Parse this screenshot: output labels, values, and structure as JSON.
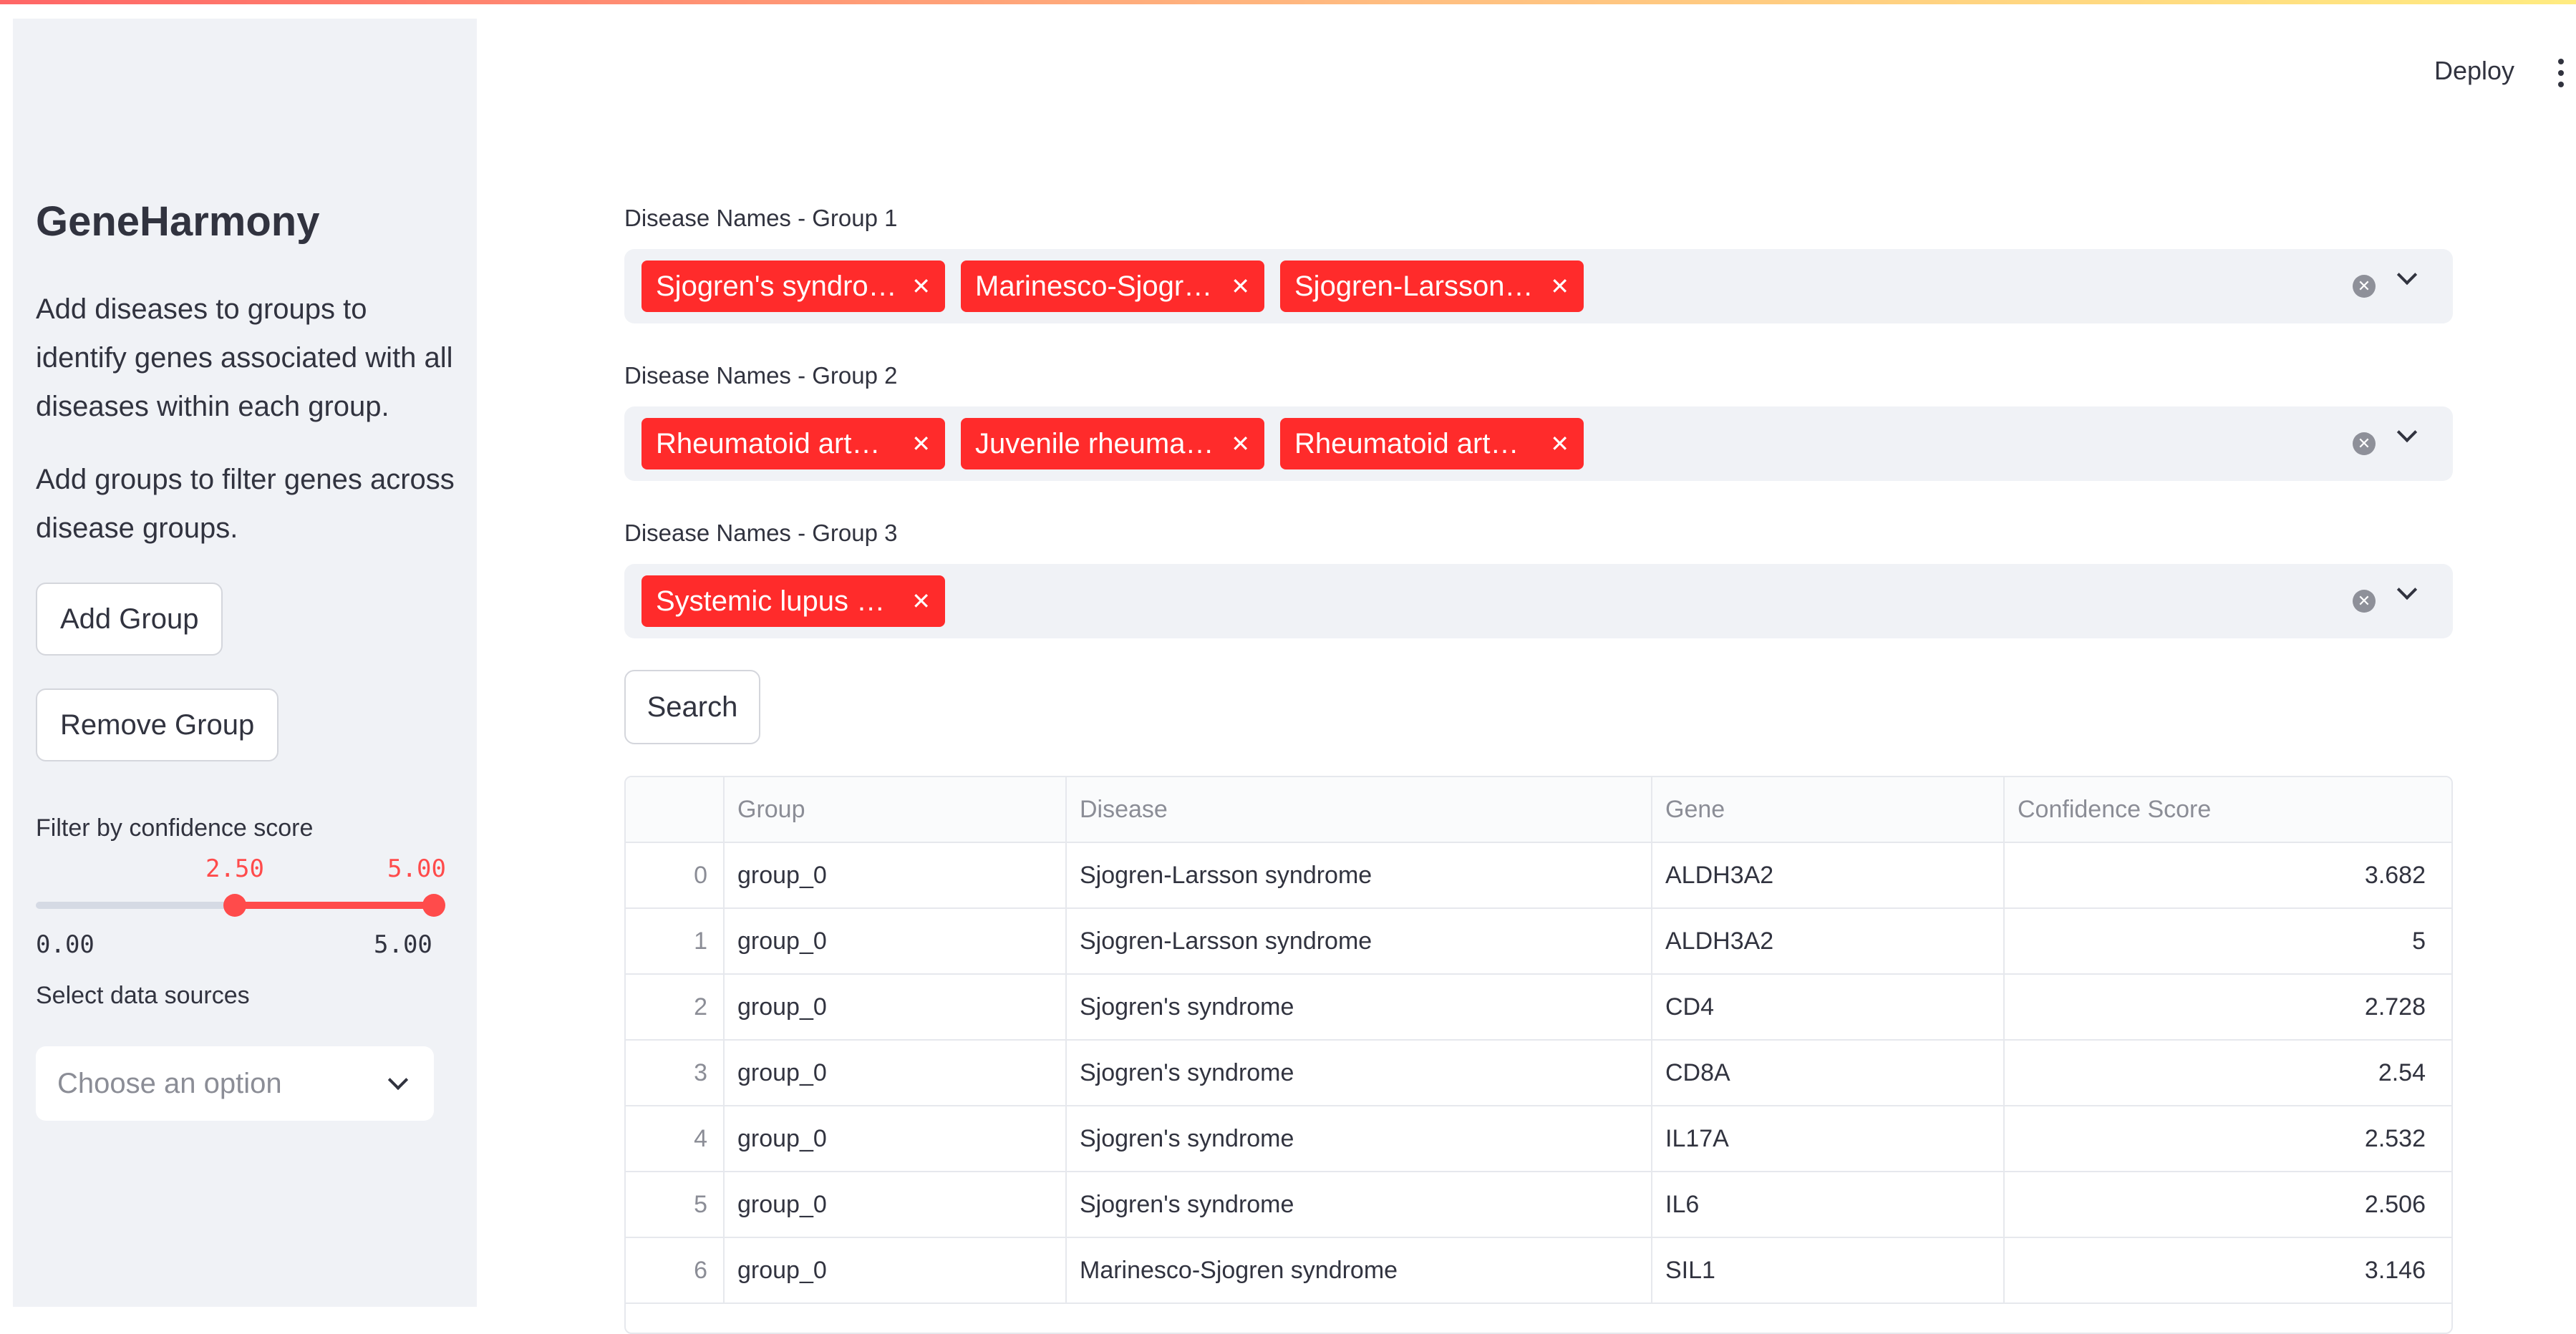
{
  "sidebar": {
    "title": "GeneHarmony",
    "desc1": "Add diseases to groups to identify genes associated with all diseases within each group.",
    "desc2": "Add groups to filter genes across disease groups.",
    "add_group": "Add Group",
    "remove_group": "Remove Group",
    "filter_label": "Filter by confidence score",
    "slider": {
      "low": "2.50",
      "high": "5.00",
      "min": "0.00",
      "max": "5.00",
      "low_value": 2.5,
      "high_value": 5.0,
      "range_min": 0,
      "range_max": 5
    },
    "sources_label": "Select data sources",
    "sources_placeholder": "Choose an option"
  },
  "header": {
    "deploy": "Deploy"
  },
  "groups": [
    {
      "label": "Disease Names - Group 1",
      "chips": [
        "Sjogren's syndro…",
        "Marinesco-Sjogr…",
        "Sjogren-Larsson …"
      ]
    },
    {
      "label": "Disease Names - Group 2",
      "chips": [
        "Rheumatoid art…",
        "Juvenile rheuma…",
        "Rheumatoid art…"
      ]
    },
    {
      "label": "Disease Names - Group 3",
      "chips": [
        "Systemic lupus e…"
      ]
    }
  ],
  "search_label": "Search",
  "table": {
    "columns": [
      "",
      "Group",
      "Disease",
      "Gene",
      "Confidence Score"
    ],
    "rows": [
      {
        "idx": "0",
        "group": "group_0",
        "disease": "Sjogren-Larsson syndrome",
        "gene": "ALDH3A2",
        "score": "3.682"
      },
      {
        "idx": "1",
        "group": "group_0",
        "disease": "Sjogren-Larsson syndrome",
        "gene": "ALDH3A2",
        "score": "5"
      },
      {
        "idx": "2",
        "group": "group_0",
        "disease": "Sjogren's syndrome",
        "gene": "CD4",
        "score": "2.728"
      },
      {
        "idx": "3",
        "group": "group_0",
        "disease": "Sjogren's syndrome",
        "gene": "CD8A",
        "score": "2.54"
      },
      {
        "idx": "4",
        "group": "group_0",
        "disease": "Sjogren's syndrome",
        "gene": "IL17A",
        "score": "2.532"
      },
      {
        "idx": "5",
        "group": "group_0",
        "disease": "Sjogren's syndrome",
        "gene": "IL6",
        "score": "2.506"
      },
      {
        "idx": "6",
        "group": "group_0",
        "disease": "Marinesco-Sjogren syndrome",
        "gene": "SIL1",
        "score": "3.146"
      }
    ]
  }
}
